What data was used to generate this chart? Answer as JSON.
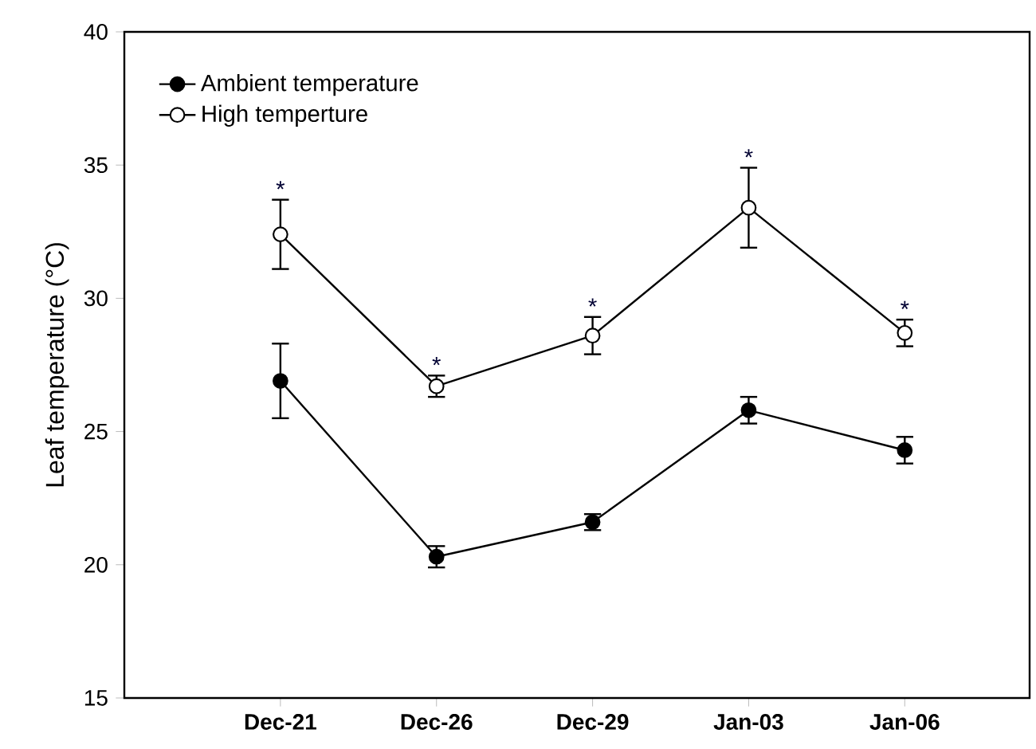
{
  "chart_data": {
    "type": "line",
    "ylabel": "Leaf temperature (°C)",
    "categories": [
      "Dec-21",
      "Dec-26",
      "Dec-29",
      "Jan-03",
      "Jan-06"
    ],
    "series": [
      {
        "name": "Ambient temperature",
        "color": "#000000",
        "values": [
          26.9,
          20.3,
          21.6,
          25.8,
          24.3
        ],
        "errors": [
          1.4,
          0.4,
          0.3,
          0.5,
          0.5
        ]
      },
      {
        "name": "High temperture",
        "color": "#ffffff",
        "values": [
          32.4,
          26.7,
          28.6,
          33.4,
          28.7
        ],
        "errors": [
          1.3,
          0.4,
          0.7,
          1.5,
          0.5
        ]
      }
    ],
    "annotations": [
      "*",
      "*",
      "*",
      "*",
      "*"
    ],
    "ylim": [
      15,
      40
    ],
    "yticks": [
      15,
      20,
      25,
      30,
      35,
      40
    ],
    "legend": "top left",
    "marker": "circle",
    "line_style": "solid",
    "grid": false
  }
}
